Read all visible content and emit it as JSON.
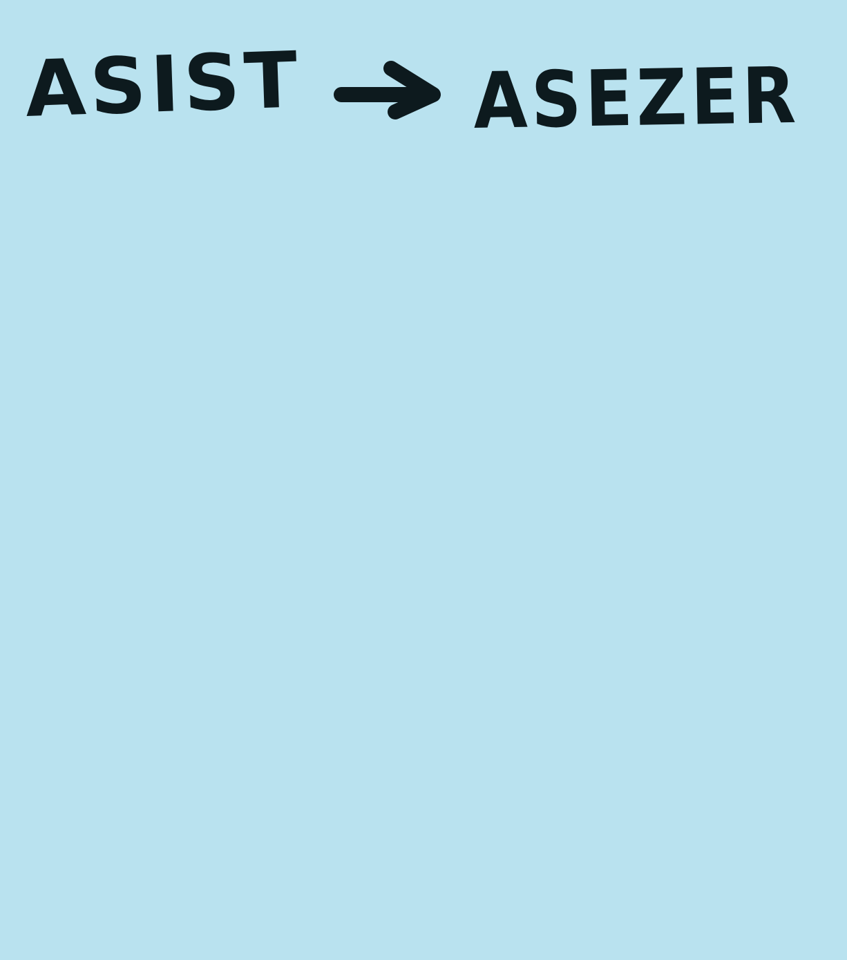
{
  "note": {
    "background_color": "#b9e2ef",
    "ink_color": "#0d1a1e",
    "word_before": "ASIST",
    "arrow_icon": "right-arrow-icon",
    "word_after": "ASEZER"
  }
}
